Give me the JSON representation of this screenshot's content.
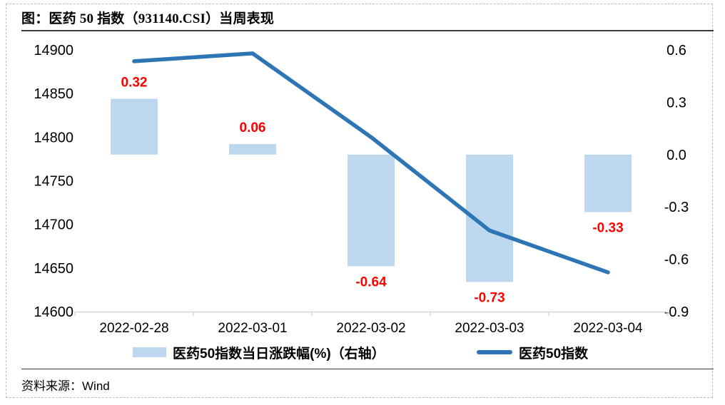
{
  "chart_data": {
    "type": "bar+line",
    "title": "图：医药 50 指数（931140.CSI）当周表现",
    "categories": [
      "2022-02-28",
      "2022-03-01",
      "2022-03-02",
      "2022-03-03",
      "2022-03-04"
    ],
    "series": [
      {
        "name": "医药50指数当日涨跌幅(%)（右轴）",
        "type": "bar",
        "axis": "right",
        "values": [
          0.32,
          0.06,
          -0.64,
          -0.73,
          -0.33
        ],
        "color": "#BDD7EE",
        "label_color": "#FF0000"
      },
      {
        "name": "医药50指数",
        "type": "line",
        "axis": "left",
        "values": [
          14887,
          14896,
          14800,
          14693,
          14645
        ],
        "color": "#2E75B6"
      }
    ],
    "bar_labels": [
      "0.32",
      "0.06",
      "-0.64",
      "-0.73",
      "-0.33"
    ],
    "left_axis": {
      "min": 14600,
      "max": 14900,
      "step": 50,
      "ticks": [
        "14900",
        "14850",
        "14800",
        "14750",
        "14700",
        "14650",
        "14600"
      ]
    },
    "right_axis": {
      "min": -0.9,
      "max": 0.6,
      "step": 0.3,
      "ticks": [
        "0.6",
        "0.3",
        "0.0",
        "-0.3",
        "-0.6",
        "-0.9"
      ]
    },
    "grid": false,
    "legend_position": "bottom"
  },
  "footer": {
    "source": "资料来源：Wind"
  }
}
